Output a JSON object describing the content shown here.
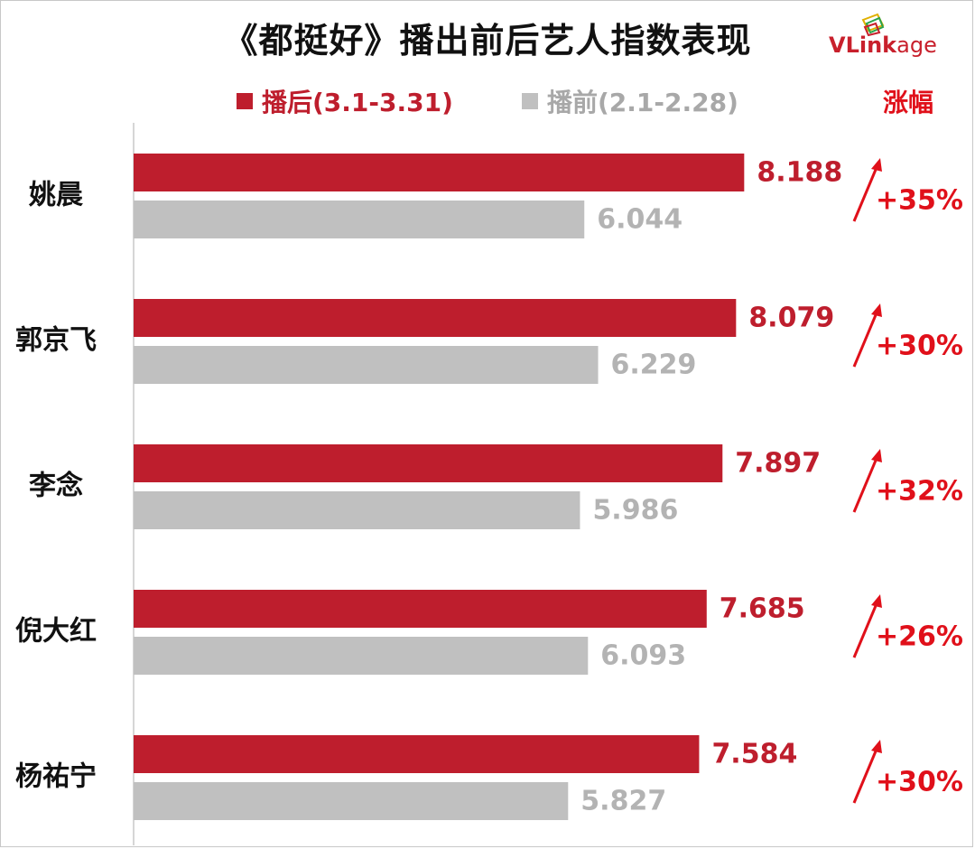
{
  "chart_data": {
    "type": "bar",
    "title": "《都挺好》播出前后艺人指数表现",
    "orientation": "horizontal",
    "categories": [
      "姚晨",
      "郭京飞",
      "李念",
      "倪大红",
      "杨祐宁"
    ],
    "series": [
      {
        "name": "播后(3.1-3.31)",
        "color": "#be1e2d",
        "label_color": "#be1e2d",
        "values": [
          8.188,
          8.079,
          7.897,
          7.685,
          7.584
        ],
        "labels": [
          "8.188",
          "8.079",
          "7.897",
          "7.685",
          "7.584"
        ]
      },
      {
        "name": "播前(2.1-2.28)",
        "color": "#c0c0c0",
        "label_color": "#b3b3b3",
        "values": [
          6.044,
          6.229,
          5.986,
          6.093,
          5.827
        ],
        "labels": [
          "6.044",
          "6.229",
          "5.986",
          "6.093",
          "5.827"
        ]
      }
    ],
    "change_header": "涨幅",
    "changes": [
      "+35%",
      "+30%",
      "+32%",
      "+26%",
      "+30%"
    ],
    "xlim": [
      0,
      9.9
    ],
    "legend_position": "top",
    "grid": false
  },
  "brand": {
    "logo_text_accent": "VLink",
    "logo_text_rest": "age"
  },
  "colors": {
    "accent": "#e0101a",
    "after": "#be1e2d",
    "before": "#c0c0c0"
  },
  "icons": {
    "change_arrow": "arrow-up-right-icon"
  }
}
